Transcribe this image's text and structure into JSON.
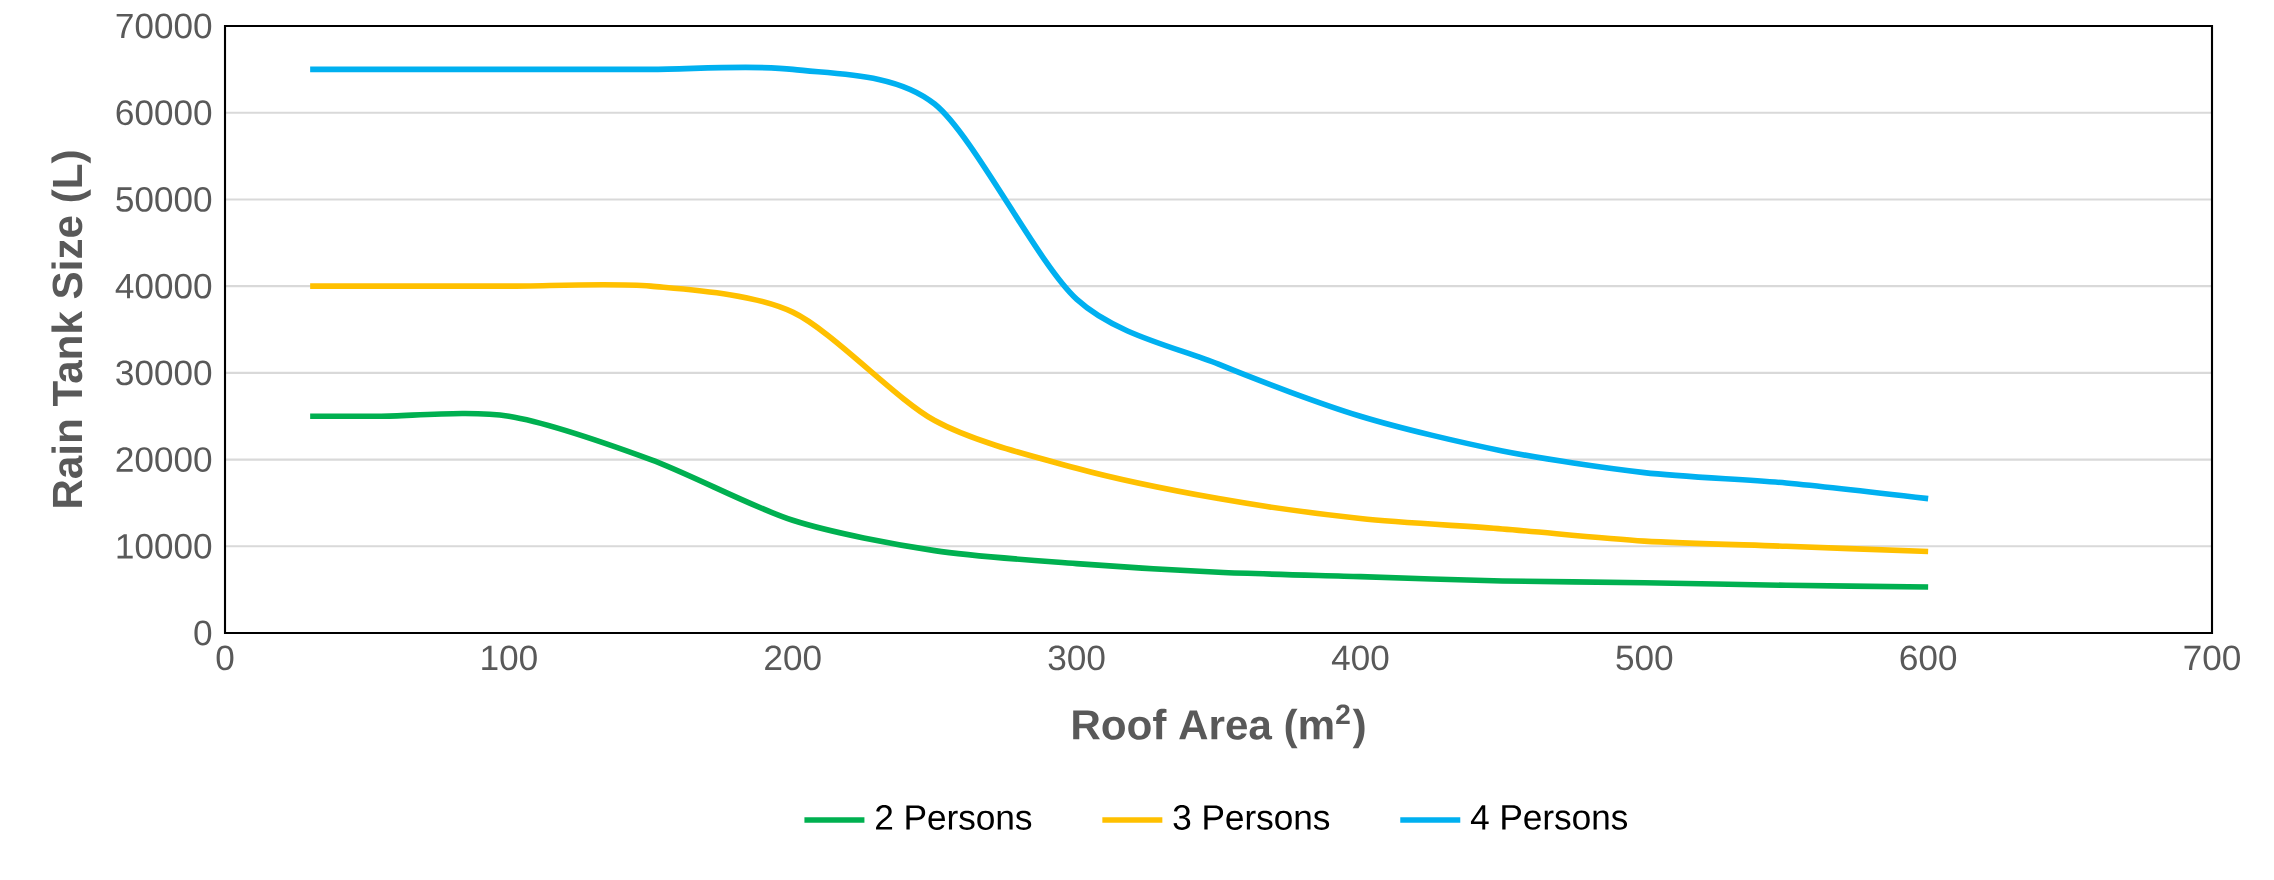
{
  "chart_data": {
    "type": "line",
    "xlabel": "Roof Area (m$^{2}$)",
    "ylabel": "Rain Tank Size (L)",
    "xlim": [
      0,
      700
    ],
    "xticks": [
      0,
      100,
      200,
      300,
      400,
      500,
      600,
      700
    ],
    "ylim": [
      0,
      70000
    ],
    "yticks": [
      0,
      10000,
      20000,
      30000,
      40000,
      50000,
      60000,
      70000
    ],
    "x": [
      30,
      55,
      100,
      150,
      200,
      250,
      300,
      350,
      400,
      450,
      500,
      550,
      600
    ],
    "series": [
      {
        "name": "2 Persons",
        "color": "#00b050",
        "values": [
          25000,
          25000,
          25000,
          20000,
          13000,
          9500,
          8000,
          7000,
          6500,
          6000,
          5800,
          5500,
          5300
        ]
      },
      {
        "name": "3 Persons",
        "color": "#ffc000",
        "values": [
          40000,
          40000,
          40000,
          40000,
          37000,
          24500,
          19000,
          15500,
          13200,
          12000,
          10600,
          10000,
          9400
        ]
      },
      {
        "name": "4 Persons",
        "color": "#00b0f0",
        "values": [
          65000,
          65000,
          65000,
          65000,
          65000,
          61000,
          38500,
          31000,
          25000,
          21000,
          18500,
          17300,
          15500
        ]
      }
    ],
    "grid": "y",
    "legend": "bottom",
    "marker": "none",
    "line_style": "solid"
  }
}
